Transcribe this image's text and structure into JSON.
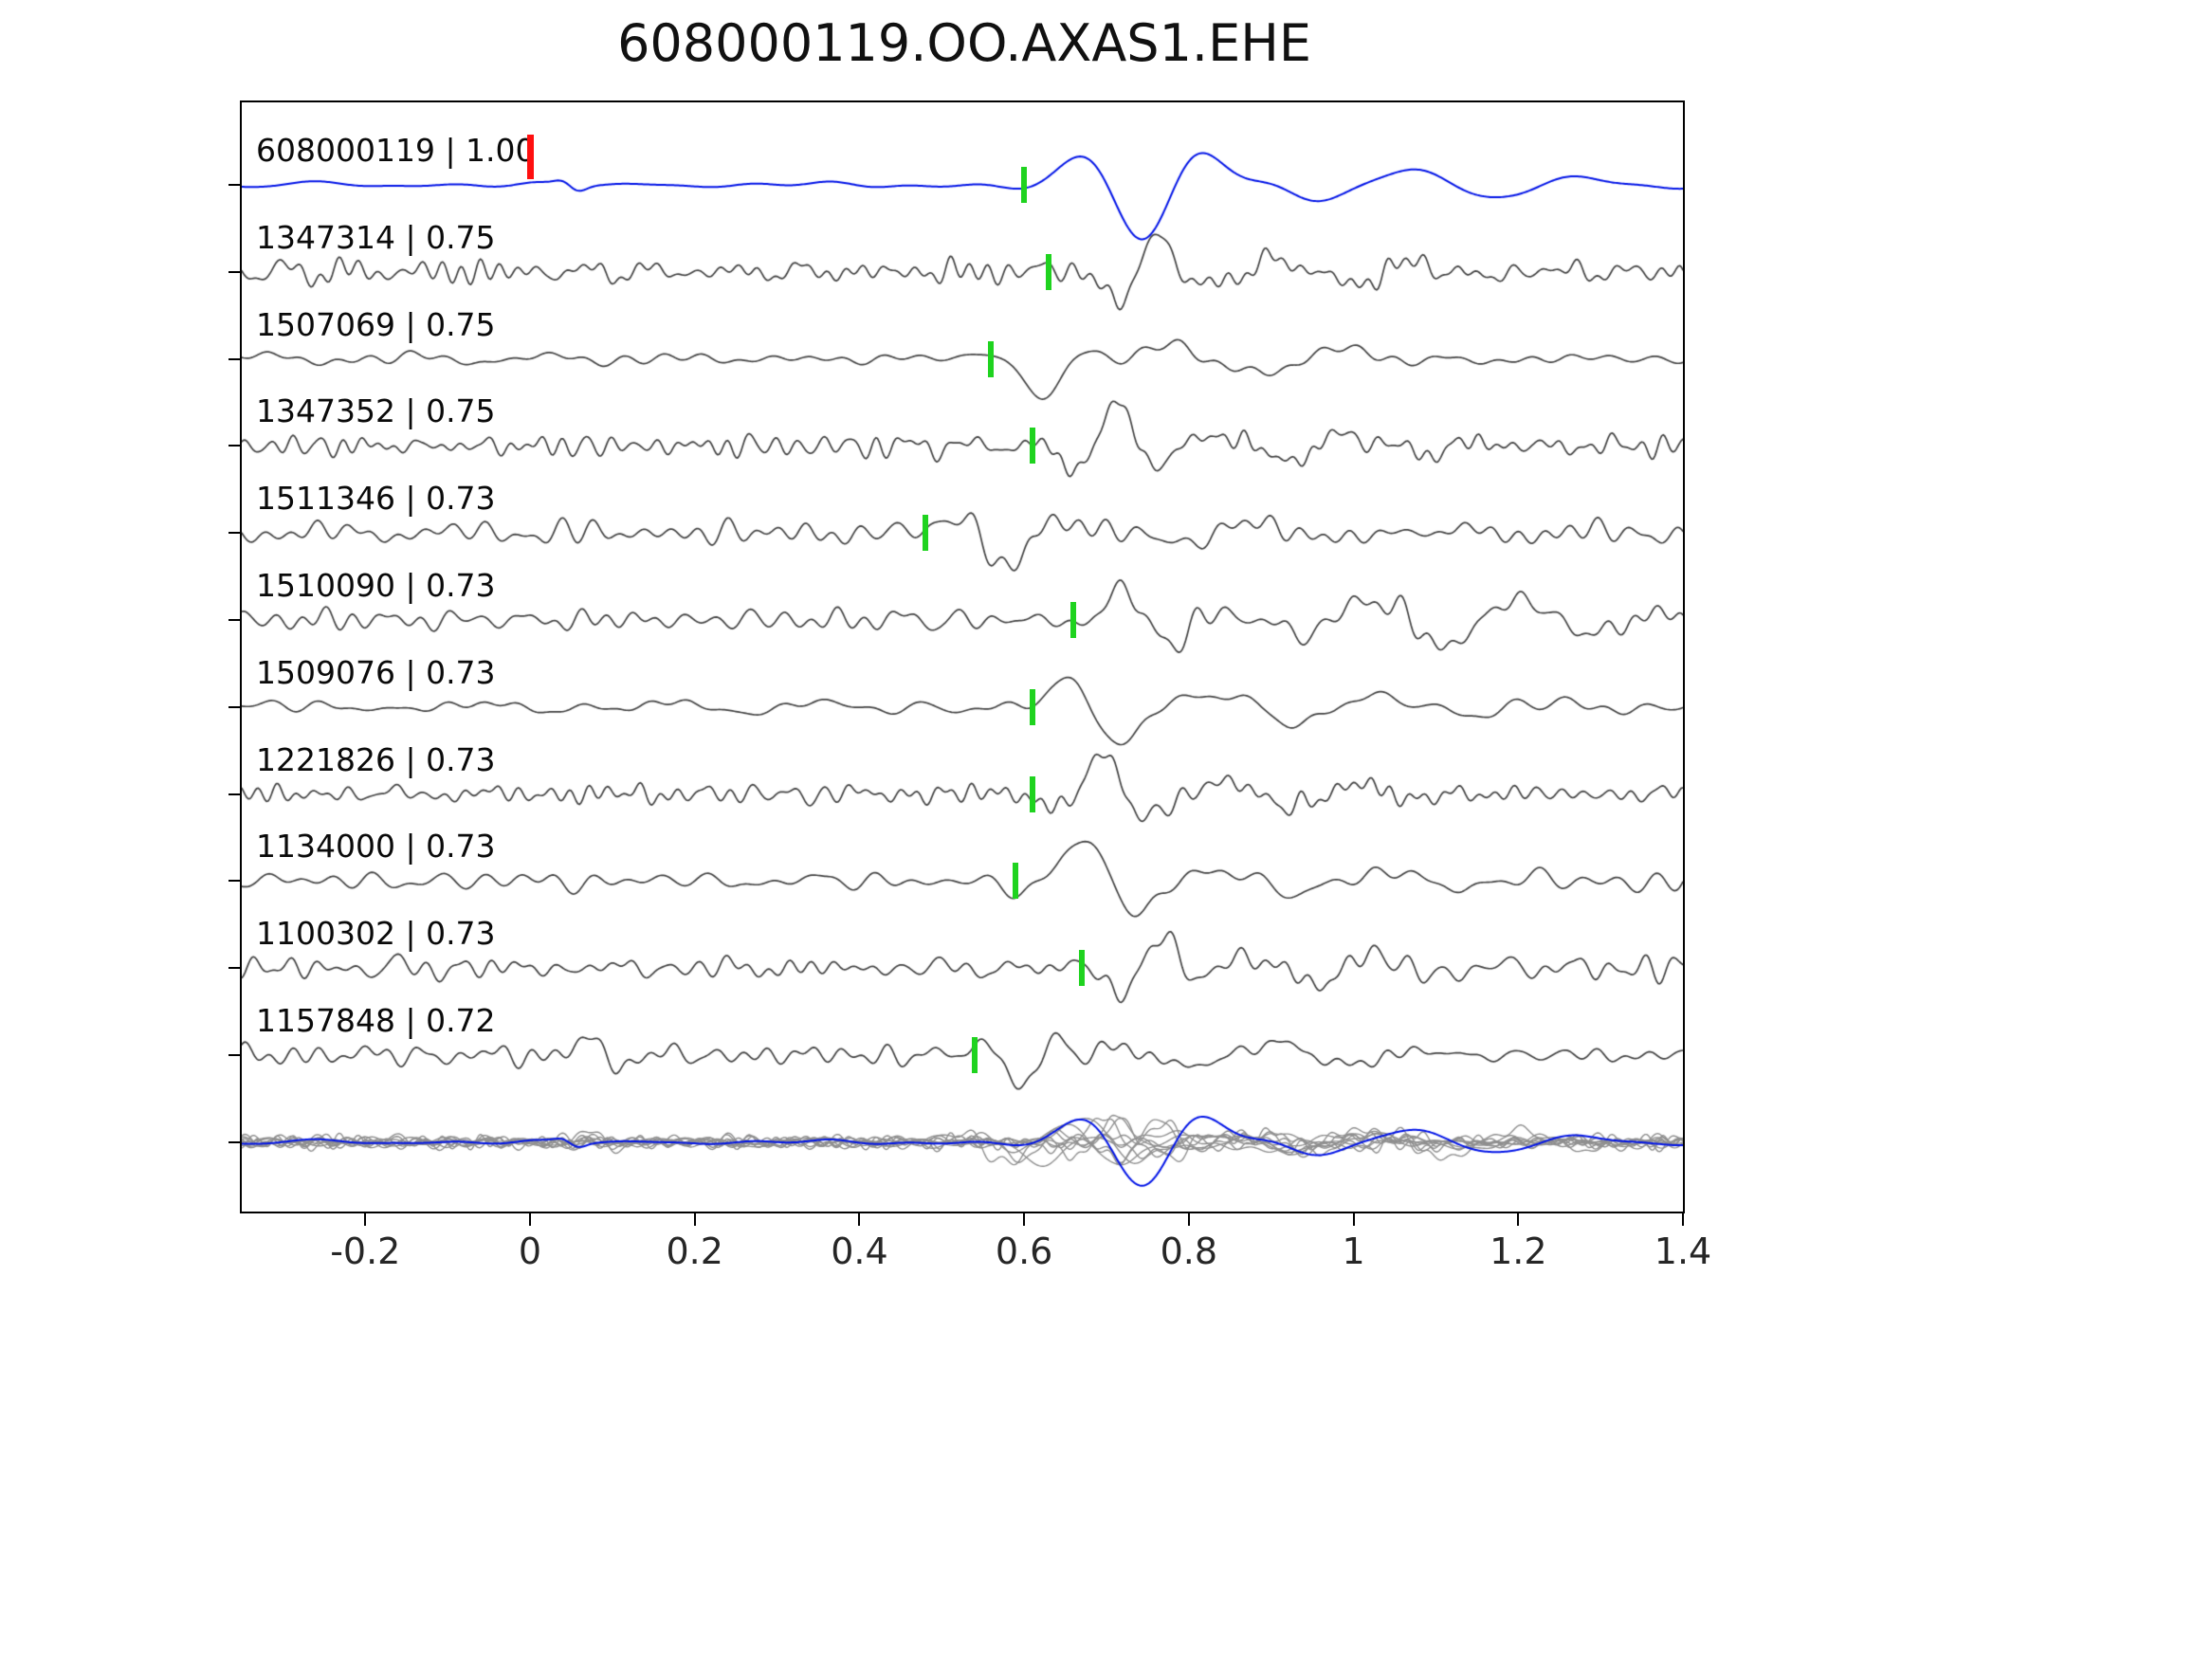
{
  "title": "608000119.OO.AXAS1.EHE",
  "chart_data": {
    "type": "line",
    "title": "608000119.OO.AXAS1.EHE",
    "xlabel": "",
    "ylabel": "",
    "xlim": [
      -0.35,
      1.4
    ],
    "x_ticks": [
      -0.2,
      0,
      0.2,
      0.4,
      0.6,
      0.8,
      1,
      1.2,
      1.4
    ],
    "x_tick_labels": [
      "-0.2",
      "0",
      "0.2",
      "0.4",
      "0.6",
      "0.8",
      "1",
      "1.2",
      "1.4"
    ],
    "grid": false,
    "legend": "none",
    "colors": {
      "template_trace": "#0013e6",
      "match_trace": "#424242",
      "overlay_trace": "#8f8f8f",
      "pick_marker": "#1fd31f",
      "reference_pick_marker": "#ff0f0f",
      "axis": "#000000"
    },
    "traces": [
      {
        "label": "608000119 | 1.00",
        "event_id": "608000119",
        "correlation": 1.0,
        "kind": "template",
        "pick_time": 0.6,
        "reference_pick_time": 0.0
      },
      {
        "label": "1347314 | 0.75",
        "event_id": "1347314",
        "correlation": 0.75,
        "kind": "match",
        "pick_time": 0.63
      },
      {
        "label": "1507069 | 0.75",
        "event_id": "1507069",
        "correlation": 0.75,
        "kind": "match",
        "pick_time": 0.56
      },
      {
        "label": "1347352 | 0.75",
        "event_id": "1347352",
        "correlation": 0.75,
        "kind": "match",
        "pick_time": 0.61
      },
      {
        "label": "1511346 | 0.73",
        "event_id": "1511346",
        "correlation": 0.73,
        "kind": "match",
        "pick_time": 0.48
      },
      {
        "label": "1510090 | 0.73",
        "event_id": "1510090",
        "correlation": 0.73,
        "kind": "match",
        "pick_time": 0.66
      },
      {
        "label": "1509076 | 0.73",
        "event_id": "1509076",
        "correlation": 0.73,
        "kind": "match",
        "pick_time": 0.61
      },
      {
        "label": "1221826 | 0.73",
        "event_id": "1221826",
        "correlation": 0.73,
        "kind": "match",
        "pick_time": 0.61
      },
      {
        "label": "1134000 | 0.73",
        "event_id": "1134000",
        "correlation": 0.73,
        "kind": "match",
        "pick_time": 0.59
      },
      {
        "label": "1100302 | 0.73",
        "event_id": "1100302",
        "correlation": 0.73,
        "kind": "match",
        "pick_time": 0.67
      },
      {
        "label": "1157848 | 0.72",
        "event_id": "1157848",
        "correlation": 0.72,
        "kind": "match",
        "pick_time": 0.54
      }
    ],
    "overlay_row": {
      "description": "All matched waveforms overlaid with the template waveform",
      "has_picks": false
    }
  }
}
